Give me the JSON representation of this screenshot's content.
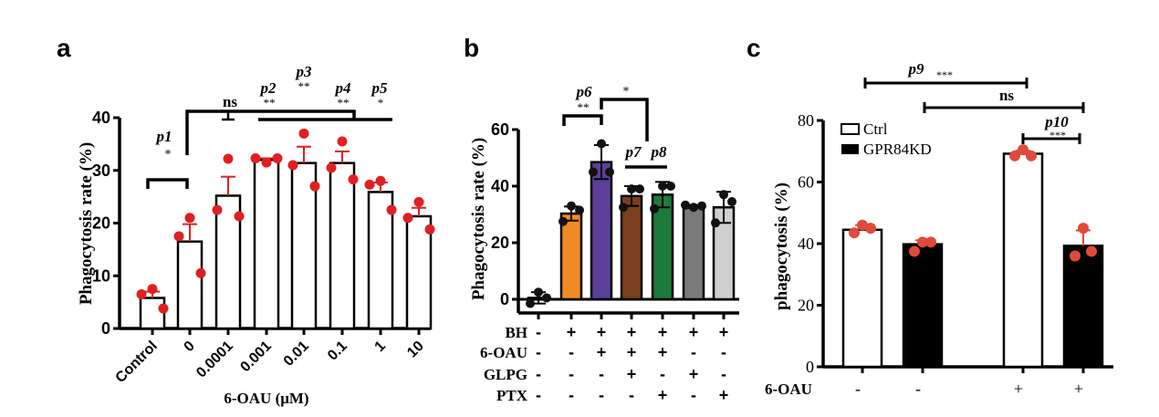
{
  "panel_labels": [
    "a",
    "b",
    "c"
  ],
  "chart_data": [
    {
      "type": "bar",
      "panel": "a",
      "ylabel": "Phagocytosis rate (%)",
      "xlabel": "6-OAU (μM)",
      "ylim": [
        0,
        40
      ],
      "yticks": [
        0,
        10,
        20,
        30,
        40
      ],
      "categories": [
        "Control",
        "0",
        "0.0001",
        "0.001",
        "0.01",
        "0.1",
        "1",
        "10"
      ],
      "values": [
        5.8,
        16.5,
        25.2,
        32.0,
        31.4,
        31.4,
        25.9,
        21.3
      ],
      "errors": [
        1.2,
        3.3,
        3.6,
        0.3,
        3.1,
        2.2,
        1.8,
        1.6
      ],
      "points": [
        [
          7.5,
          6.5,
          3.8
        ],
        [
          21,
          17.5,
          10.5
        ],
        [
          32.2,
          22.5,
          21.3
        ],
        [
          31.5,
          32.3,
          32.3
        ],
        [
          37,
          31,
          27
        ],
        [
          35.5,
          30.5,
          28.3
        ],
        [
          28,
          27.3,
          22.5
        ],
        [
          24,
          21,
          18.8
        ]
      ],
      "bar_color": "#ffffff",
      "point_color": "#e02020",
      "annotations": {
        "p1": "p1",
        "p1_sig": "*",
        "ns": "ns",
        "p2": "p2",
        "p2_sig": "**",
        "p3": "p3",
        "p3_sig": "**",
        "p4": "p4",
        "p4_sig": "**",
        "p5": "p5",
        "p5_sig": "*"
      }
    },
    {
      "type": "bar",
      "panel": "b",
      "ylabel": "Phagocytosis rate (%)",
      "ylim": [
        -5,
        60
      ],
      "yticks": [
        0,
        20,
        40,
        60
      ],
      "values": [
        0.5,
        30.3,
        48.5,
        36.5,
        37.0,
        32.8,
        32.5
      ],
      "errors": [
        2,
        2.5,
        6,
        3.5,
        4.5,
        0.5,
        5.5
      ],
      "points": [
        [
          2.5,
          -1.5,
          0.5
        ],
        [
          33,
          27.5,
          31.5
        ],
        [
          55,
          45,
          45
        ],
        [
          39,
          32.5,
          39
        ],
        [
          40,
          32,
          40
        ],
        [
          32.5,
          33.3,
          33
        ],
        [
          37,
          27,
          34.5
        ]
      ],
      "bar_colors": [
        "#ffffff",
        "#f08a24",
        "#5b3f99",
        "#7b3f1e",
        "#1d7a3a",
        "#7a7a7a",
        "#cfcfcf"
      ],
      "point_color": "#111111",
      "conditions": [
        {
          "name": "BH",
          "signs": [
            "-",
            "+",
            "+",
            "+",
            "+",
            "+",
            "+"
          ]
        },
        {
          "name": "6-OAU",
          "signs": [
            "-",
            "-",
            "+",
            "+",
            "+",
            "-",
            "-"
          ]
        },
        {
          "name": "GLPG",
          "signs": [
            "-",
            "-",
            "-",
            "+",
            "-",
            "+",
            "-"
          ]
        },
        {
          "name": "PTX",
          "signs": [
            "-",
            "-",
            "-",
            "-",
            "+",
            "-",
            "+"
          ]
        }
      ],
      "annotations": {
        "p6": "p6",
        "p6_sig": "**",
        "star": "*",
        "p7": "p7",
        "p8": "p8"
      }
    },
    {
      "type": "bar",
      "panel": "c",
      "ylabel": "phagocytosis (%)",
      "ylim": [
        0,
        80
      ],
      "yticks": [
        0,
        20,
        40,
        60,
        80
      ],
      "legend": [
        {
          "name": "Ctrl",
          "color": "#ffffff"
        },
        {
          "name": "GPR84KD",
          "color": "#000000"
        }
      ],
      "legend_position": "top-left",
      "values": [
        44.5,
        39.8,
        69.2,
        39.3
      ],
      "errors": [
        1.5,
        1.3,
        1.0,
        5.0
      ],
      "points": [
        [
          46,
          43.5,
          45
        ],
        [
          40.5,
          37.5,
          40.5
        ],
        [
          70.5,
          68.5,
          68.5
        ],
        [
          45,
          36,
          37.5
        ]
      ],
      "groups": [
        "Ctrl",
        "GPR84KD",
        "Ctrl",
        "GPR84KD"
      ],
      "point_color": "#e04a3a",
      "condition": {
        "name": "6-OAU",
        "signs": [
          "-",
          "-",
          "+",
          "+"
        ]
      },
      "annotations": {
        "p9": "p9",
        "p9_sig": "***",
        "ns": "ns",
        "p10": "p10",
        "p10_sig": "***"
      }
    }
  ]
}
